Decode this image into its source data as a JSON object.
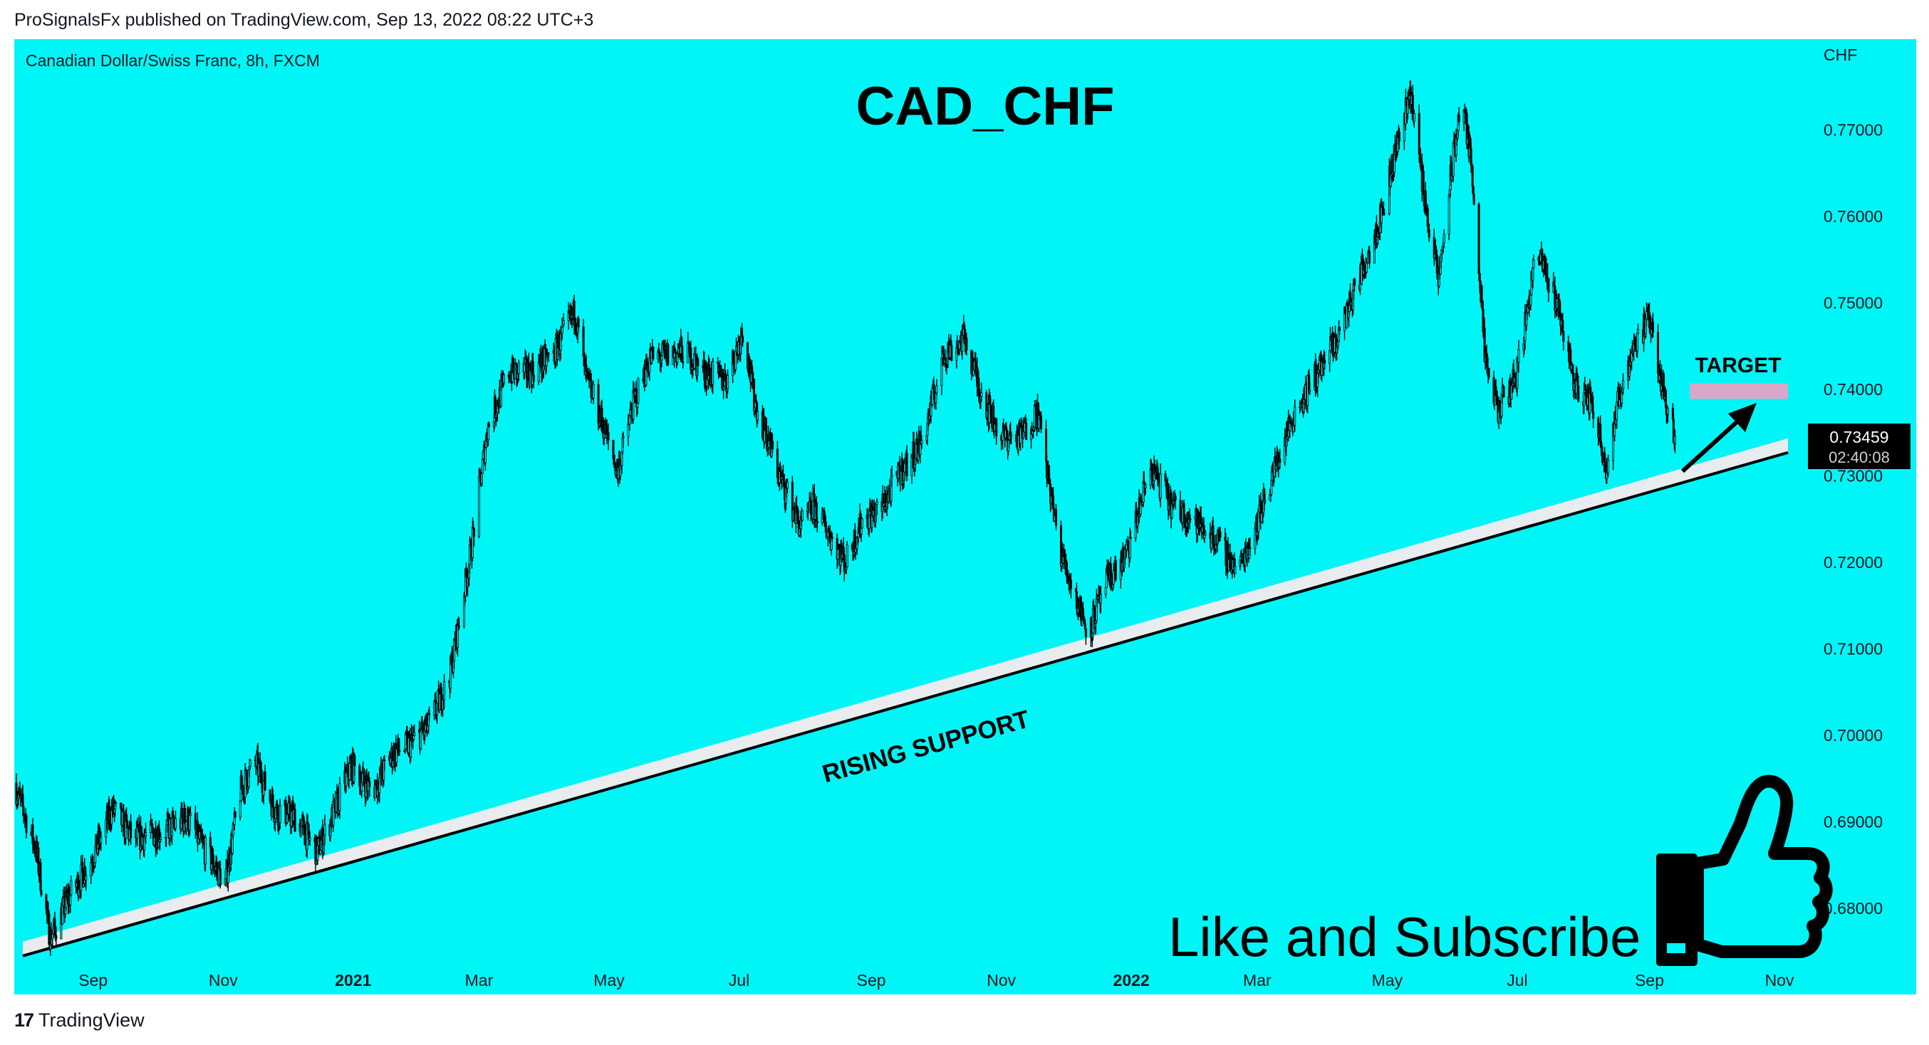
{
  "header": {
    "published_text": "ProSignalsFx published on TradingView.com, Sep 13, 2022 08:22 UTC+3"
  },
  "footer": {
    "logo_mark": "17",
    "brand": "TradingView"
  },
  "colors": {
    "background": "#00f5f7",
    "candles": "#000000",
    "support_band": "#e8ecef",
    "target_zone": "#d9a6c8",
    "price_label_bg": "#000000"
  },
  "chart_data": {
    "type": "candlestick",
    "symbol_text": "Canadian Dollar/Swiss Franc, 8h, FXCM",
    "title": "CAD_CHF",
    "currency": "CHF",
    "x_ticks": [
      "Sep",
      "Nov",
      "2021",
      "Mar",
      "May",
      "Jul",
      "Sep",
      "Nov",
      "2022",
      "Mar",
      "May",
      "Jul",
      "Sep",
      "Nov"
    ],
    "y_ticks": [
      "0.77000",
      "0.76000",
      "0.75000",
      "0.74000",
      "0.73000",
      "0.72000",
      "0.71000",
      "0.70000",
      "0.69000",
      "0.68000"
    ],
    "ylim": [
      0.6735,
      0.7805
    ],
    "xlim": [
      "2020-07-26",
      "2022-11-15"
    ],
    "last_price": "0.73459",
    "countdown": "02:40:08",
    "approx_series": {
      "dates": [
        "2020-07-26",
        "2020-08-05",
        "2020-08-12",
        "2020-08-20",
        "2020-09-01",
        "2020-09-10",
        "2020-09-20",
        "2020-10-05",
        "2020-10-15",
        "2020-10-25",
        "2020-11-02",
        "2020-11-09",
        "2020-11-16",
        "2020-11-25",
        "2020-12-05",
        "2020-12-15",
        "2020-12-22",
        "2020-12-31",
        "2021-01-10",
        "2021-01-20",
        "2021-01-28",
        "2021-02-05",
        "2021-02-15",
        "2021-02-25",
        "2021-03-05",
        "2021-03-15",
        "2021-03-25",
        "2021-04-05",
        "2021-04-15",
        "2021-04-20",
        "2021-04-28",
        "2021-05-05",
        "2021-05-12",
        "2021-05-20",
        "2021-05-28",
        "2021-06-05",
        "2021-06-15",
        "2021-06-25",
        "2021-07-03",
        "2021-07-08",
        "2021-07-20",
        "2021-07-30",
        "2021-08-05",
        "2021-08-20",
        "2021-08-28",
        "2021-09-05",
        "2021-09-15",
        "2021-09-25",
        "2021-10-05",
        "2021-10-15",
        "2021-10-22",
        "2021-11-01",
        "2021-11-10",
        "2021-11-18",
        "2021-11-28",
        "2021-12-05",
        "2021-12-12",
        "2021-12-20",
        "2021-12-30",
        "2022-01-10",
        "2022-01-20",
        "2022-01-30",
        "2022-02-10",
        "2022-02-20",
        "2022-02-28",
        "2022-03-08",
        "2022-03-18",
        "2022-03-28",
        "2022-04-07",
        "2022-04-18",
        "2022-04-28",
        "2022-05-08",
        "2022-05-12",
        "2022-05-18",
        "2022-05-25",
        "2022-05-31",
        "2022-06-05",
        "2022-06-10",
        "2022-06-16",
        "2022-06-22",
        "2022-07-01",
        "2022-07-10",
        "2022-07-20",
        "2022-07-28",
        "2022-08-05",
        "2022-08-12",
        "2022-08-18",
        "2022-08-25",
        "2022-09-01",
        "2022-09-08",
        "2022-09-13"
      ],
      "close": [
        0.6945,
        0.687,
        0.6765,
        0.681,
        0.686,
        0.6915,
        0.688,
        0.689,
        0.6905,
        0.686,
        0.683,
        0.6935,
        0.697,
        0.6915,
        0.6905,
        0.6865,
        0.6905,
        0.6965,
        0.6935,
        0.698,
        0.699,
        0.701,
        0.7065,
        0.721,
        0.7355,
        0.742,
        0.742,
        0.744,
        0.749,
        0.7415,
        0.736,
        0.7305,
        0.738,
        0.7435,
        0.744,
        0.7445,
        0.742,
        0.741,
        0.747,
        0.739,
        0.73,
        0.724,
        0.7265,
        0.72,
        0.725,
        0.726,
        0.7305,
        0.734,
        0.744,
        0.746,
        0.74,
        0.7345,
        0.7345,
        0.7375,
        0.722,
        0.7165,
        0.712,
        0.7175,
        0.721,
        0.731,
        0.7265,
        0.725,
        0.7225,
        0.719,
        0.724,
        0.73,
        0.737,
        0.7415,
        0.7455,
        0.753,
        0.76,
        0.771,
        0.7745,
        0.763,
        0.7525,
        0.765,
        0.774,
        0.765,
        0.743,
        0.7375,
        0.742,
        0.756,
        0.75,
        0.7405,
        0.7385,
        0.731,
        0.7395,
        0.7455,
        0.748,
        0.7395,
        0.7346
      ]
    },
    "annotations": {
      "support_label": "RISING SUPPORT",
      "target_label": "TARGET",
      "cta": "Like and Subscribe",
      "support_line": {
        "from_date": "2020-07-30",
        "from_price": 0.6745,
        "to_date": "2022-11-05",
        "to_price": 0.7327
      },
      "target_zone": {
        "from_date": "2022-09-20",
        "to_date": "2022-11-05",
        "low": 0.7389,
        "high": 0.7407
      }
    }
  }
}
